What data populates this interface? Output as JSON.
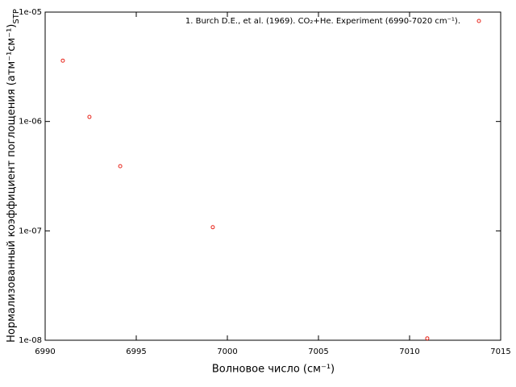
{
  "chart_data": {
    "type": "scatter",
    "x_label": "Волновое число (см⁻¹)",
    "y_label": "Нормализованный коэффициент поглощения (атм⁻¹см⁻¹)",
    "y_label_sub": "STP",
    "x": [
      6990.97,
      6992.43,
      6994.12,
      6999.2,
      7010.97
    ],
    "series": [
      {
        "name": "1. Burch D.E., et al. (1969). CO₂+He. Experiment (6990-7020 cm⁻¹).",
        "color": "#e8261c",
        "values": [
          3.6e-06,
          1.1e-06,
          3.9e-07,
          1.08e-07,
          1.04e-08
        ]
      }
    ],
    "xlim": [
      6990,
      7015
    ],
    "xticks": [
      6990,
      6995,
      7000,
      7005,
      7010,
      7015
    ],
    "ylim": [
      1e-08,
      1e-05
    ],
    "ylog": true,
    "yticks": [
      {
        "value": 1e-08,
        "label": "1e-08"
      },
      {
        "value": 1e-07,
        "label": "1e-07"
      },
      {
        "value": 1e-06,
        "label": "1e-06"
      },
      {
        "value": 1e-05,
        "label": "1e-05"
      }
    ],
    "legend": "top-right"
  }
}
